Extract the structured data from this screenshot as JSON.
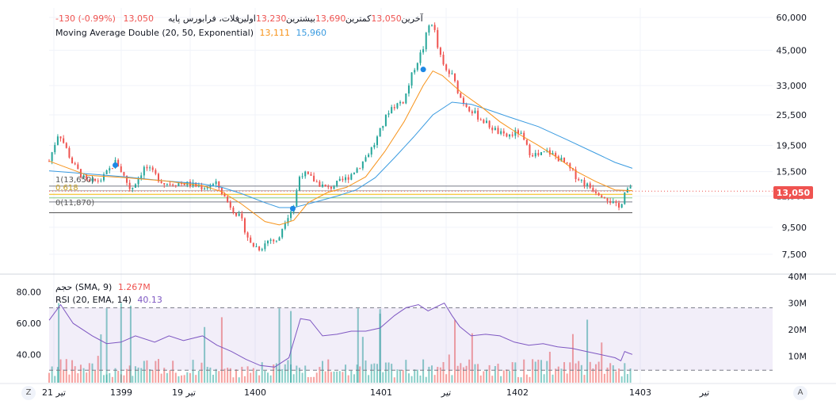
{
  "header": {
    "title": "فلات، فرابورس پایه",
    "open_label": "اولین",
    "open_value": "13,230",
    "high_label": "بیشترین",
    "high_value": "13,690",
    "low_label": "کمترین",
    "low_value": "13,050",
    "close_label": "آخرین",
    "close_value": "13,050",
    "change": "-130 (-0.99%)"
  },
  "ma_legend": {
    "label": "Moving Average Double (20, 50, Exponential)",
    "fast_value": "13,111",
    "slow_value": "15,960"
  },
  "volume_legend": {
    "label": "حجم (SMA, 9)",
    "value": "1.267M"
  },
  "rsi_legend": {
    "label": "RSI (20, EMA, 14)",
    "value": "40.13"
  },
  "price_badge": "13,050",
  "fib_labels": {
    "top": "1(13,650)",
    "mid": "0.618",
    "bottom": "0(11,870)"
  },
  "buttons": {
    "left": "Z",
    "right": "A"
  },
  "colors": {
    "up": "#26a69a",
    "down": "#ef5350",
    "ma_fast": "#f7931a",
    "ma_slow": "#3a9be0",
    "rsi": "#7e57c2",
    "marker": "#1e88e5"
  },
  "chart_data": {
    "type": "candlestick",
    "price_axis": {
      "scale": "log",
      "ticks": [
        "60,000",
        "45,000",
        "33,000",
        "25,500",
        "19,500",
        "15,500",
        "12,500",
        "9,500",
        "7,500"
      ]
    },
    "volume_axis": {
      "ticks": [
        "40M",
        "30M",
        "20M",
        "10M"
      ]
    },
    "rsi_axis": {
      "ticks": [
        "80.00",
        "60.00",
        "40.00"
      ],
      "bands": [
        30,
        70
      ]
    },
    "x_ticks": [
      "21 تیر",
      "1399",
      "19 تیر",
      "1400",
      "1401",
      "تیر",
      "1402",
      "1403",
      "تیر"
    ],
    "price_path": [
      [
        0,
        17000
      ],
      [
        10,
        22000
      ],
      [
        25,
        16500
      ],
      [
        40,
        14000
      ],
      [
        55,
        14500
      ],
      [
        70,
        17000
      ],
      [
        85,
        13200
      ],
      [
        100,
        16200
      ],
      [
        120,
        14000
      ],
      [
        140,
        14000
      ],
      [
        160,
        13500
      ],
      [
        175,
        13900
      ],
      [
        185,
        12000
      ],
      [
        200,
        10200
      ],
      [
        210,
        8200
      ],
      [
        220,
        7900
      ],
      [
        230,
        8600
      ],
      [
        238,
        8300
      ],
      [
        245,
        10000
      ],
      [
        255,
        11500
      ],
      [
        262,
        15500
      ],
      [
        272,
        14700
      ],
      [
        290,
        13300
      ],
      [
        310,
        14600
      ],
      [
        325,
        16500
      ],
      [
        340,
        20000
      ],
      [
        355,
        27000
      ],
      [
        370,
        29000
      ],
      [
        380,
        38000
      ],
      [
        390,
        46000
      ],
      [
        395,
        55000
      ],
      [
        400,
        58000
      ],
      [
        405,
        46000
      ],
      [
        412,
        38000
      ],
      [
        420,
        36000
      ],
      [
        430,
        29000
      ],
      [
        445,
        25500
      ],
      [
        460,
        23000
      ],
      [
        475,
        21000
      ],
      [
        490,
        22000
      ],
      [
        500,
        18500
      ],
      [
        510,
        17800
      ],
      [
        520,
        18500
      ],
      [
        535,
        17000
      ],
      [
        550,
        14800
      ],
      [
        560,
        13800
      ],
      [
        570,
        13100
      ],
      [
        580,
        12500
      ],
      [
        590,
        11500
      ],
      [
        595,
        11200
      ],
      [
        600,
        13200
      ],
      [
        604,
        13400
      ],
      [
        608,
        13050
      ]
    ],
    "ma_fast": [
      [
        0,
        17000
      ],
      [
        40,
        15000
      ],
      [
        80,
        14700
      ],
      [
        120,
        14300
      ],
      [
        160,
        13700
      ],
      [
        180,
        13000
      ],
      [
        200,
        11700
      ],
      [
        225,
        10000
      ],
      [
        240,
        9700
      ],
      [
        255,
        10100
      ],
      [
        270,
        11800
      ],
      [
        290,
        12900
      ],
      [
        310,
        13500
      ],
      [
        330,
        14800
      ],
      [
        350,
        18500
      ],
      [
        370,
        24000
      ],
      [
        390,
        33000
      ],
      [
        400,
        37500
      ],
      [
        410,
        36000
      ],
      [
        430,
        31000
      ],
      [
        450,
        27500
      ],
      [
        470,
        24000
      ],
      [
        490,
        21500
      ],
      [
        510,
        19500
      ],
      [
        530,
        17500
      ],
      [
        550,
        15500
      ],
      [
        570,
        14200
      ],
      [
        590,
        13200
      ],
      [
        608,
        13111
      ]
    ],
    "ma_slow": [
      [
        0,
        15600
      ],
      [
        40,
        15200
      ],
      [
        80,
        14800
      ],
      [
        120,
        14300
      ],
      [
        160,
        13900
      ],
      [
        180,
        13500
      ],
      [
        200,
        12800
      ],
      [
        225,
        11800
      ],
      [
        240,
        11300
      ],
      [
        255,
        11300
      ],
      [
        275,
        11800
      ],
      [
        300,
        12500
      ],
      [
        320,
        13200
      ],
      [
        340,
        14700
      ],
      [
        360,
        17500
      ],
      [
        380,
        21000
      ],
      [
        400,
        25500
      ],
      [
        420,
        28500
      ],
      [
        440,
        28000
      ],
      [
        460,
        26500
      ],
      [
        480,
        25000
      ],
      [
        510,
        23000
      ],
      [
        540,
        20500
      ],
      [
        570,
        18200
      ],
      [
        590,
        16800
      ],
      [
        608,
        15960
      ]
    ],
    "rsi": [
      [
        0,
        62
      ],
      [
        12,
        72
      ],
      [
        25,
        60
      ],
      [
        45,
        52
      ],
      [
        60,
        47
      ],
      [
        75,
        48
      ],
      [
        90,
        52
      ],
      [
        110,
        48
      ],
      [
        125,
        52
      ],
      [
        140,
        49
      ],
      [
        160,
        52
      ],
      [
        175,
        46
      ],
      [
        190,
        42
      ],
      [
        205,
        37
      ],
      [
        220,
        33
      ],
      [
        235,
        32
      ],
      [
        250,
        38
      ],
      [
        262,
        63
      ],
      [
        272,
        62
      ],
      [
        285,
        52
      ],
      [
        300,
        53
      ],
      [
        315,
        55
      ],
      [
        330,
        55
      ],
      [
        345,
        57
      ],
      [
        360,
        65
      ],
      [
        372,
        70
      ],
      [
        385,
        72
      ],
      [
        395,
        68
      ],
      [
        405,
        71
      ],
      [
        412,
        73
      ],
      [
        420,
        65
      ],
      [
        428,
        58
      ],
      [
        440,
        52
      ],
      [
        455,
        53
      ],
      [
        470,
        52
      ],
      [
        485,
        48
      ],
      [
        500,
        46
      ],
      [
        515,
        47
      ],
      [
        530,
        45
      ],
      [
        545,
        44
      ],
      [
        560,
        42
      ],
      [
        575,
        40
      ],
      [
        590,
        38
      ],
      [
        596,
        36
      ],
      [
        600,
        42
      ],
      [
        604,
        41
      ],
      [
        608,
        40.13
      ]
    ],
    "markers": [
      [
        69,
        16400
      ],
      [
        254,
        11200
      ],
      [
        390,
        38000
      ]
    ],
    "fib_levels": [
      13650,
      13100,
      12700,
      12300,
      11870
    ]
  }
}
